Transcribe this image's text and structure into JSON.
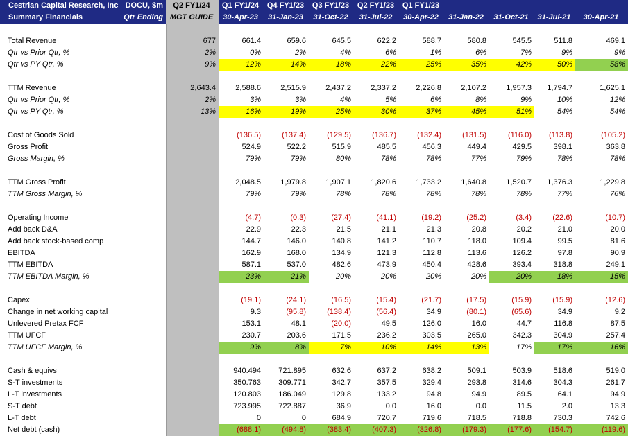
{
  "header": {
    "title": [
      "Cestrian Capital Research, Inc",
      "Summary Financials"
    ],
    "ticker": [
      "DOCU, $m",
      "Qtr Ending"
    ],
    "col_top": [
      "Q2 FY1/24",
      "Q1 FY1/24",
      "Q4 FY1/23",
      "Q3 FY1/23",
      "Q2 FY1/23",
      "Q1 FY1/23",
      "",
      "",
      "",
      ""
    ],
    "col_bottom": [
      "MGT GUIDE",
      "30-Apr-23",
      "31-Jan-23",
      "31-Oct-22",
      "31-Jul-22",
      "30-Apr-22",
      "31-Jan-22",
      "31-Oct-21",
      "31-Jul-21",
      "30-Apr-21"
    ]
  },
  "colors": {
    "header_bg": "#1f2a84",
    "guide_bg": "#bfbfbf",
    "highlight_yellow": "#ffff00",
    "highlight_green": "#92d050",
    "negative": "#c00000"
  },
  "rows": [
    {
      "type": "spacer"
    },
    {
      "label": "Total Revenue",
      "italic": false,
      "guide": "677",
      "values": [
        "661.4",
        "659.6",
        "645.5",
        "622.2",
        "588.7",
        "580.8",
        "545.5",
        "511.8",
        "469.1"
      ],
      "hl": [
        "",
        "",
        "",
        "",
        "",
        "",
        "",
        "",
        ""
      ]
    },
    {
      "label": "Qtr vs Prior Qtr, %",
      "italic": true,
      "guide": "2%",
      "values": [
        "0%",
        "2%",
        "4%",
        "6%",
        "1%",
        "6%",
        "7%",
        "9%",
        "9%"
      ],
      "hl": [
        "",
        "",
        "",
        "",
        "",
        "",
        "",
        "",
        ""
      ]
    },
    {
      "label": "Qtr vs PY Qtr, %",
      "italic": true,
      "guide": "9%",
      "values": [
        "12%",
        "14%",
        "18%",
        "22%",
        "25%",
        "35%",
        "42%",
        "50%",
        "58%"
      ],
      "hl": [
        "y",
        "y",
        "y",
        "y",
        "y",
        "y",
        "y",
        "y",
        "g"
      ]
    },
    {
      "type": "spacer"
    },
    {
      "label": "TTM Revenue",
      "italic": false,
      "guide": "2,643.4",
      "values": [
        "2,588.6",
        "2,515.9",
        "2,437.2",
        "2,337.2",
        "2,226.8",
        "2,107.2",
        "1,957.3",
        "1,794.7",
        "1,625.1"
      ],
      "hl": [
        "",
        "",
        "",
        "",
        "",
        "",
        "",
        "",
        ""
      ]
    },
    {
      "label": "Qtr vs Prior Qtr, %",
      "italic": true,
      "guide": "2%",
      "values": [
        "3%",
        "3%",
        "4%",
        "5%",
        "6%",
        "8%",
        "9%",
        "10%",
        "12%"
      ],
      "hl": [
        "",
        "",
        "",
        "",
        "",
        "",
        "",
        "",
        ""
      ]
    },
    {
      "label": "Qtr vs PY Qtr, %",
      "italic": true,
      "guide": "13%",
      "values": [
        "16%",
        "19%",
        "25%",
        "30%",
        "37%",
        "45%",
        "51%",
        "54%",
        "54%"
      ],
      "hl": [
        "y",
        "y",
        "y",
        "y",
        "y",
        "y",
        "y",
        "",
        ""
      ]
    },
    {
      "type": "spacer"
    },
    {
      "label": "Cost of Goods Sold",
      "italic": false,
      "guide": "",
      "values": [
        "(136.5)",
        "(137.4)",
        "(129.5)",
        "(136.7)",
        "(132.4)",
        "(131.5)",
        "(116.0)",
        "(113.8)",
        "(105.2)"
      ],
      "hl": [
        "",
        "",
        "",
        "",
        "",
        "",
        "",
        "",
        ""
      ]
    },
    {
      "label": "Gross Profit",
      "italic": false,
      "guide": "",
      "values": [
        "524.9",
        "522.2",
        "515.9",
        "485.5",
        "456.3",
        "449.4",
        "429.5",
        "398.1",
        "363.8"
      ],
      "hl": [
        "",
        "",
        "",
        "",
        "",
        "",
        "",
        "",
        ""
      ]
    },
    {
      "label": "Gross Margin, %",
      "italic": true,
      "guide": "",
      "values": [
        "79%",
        "79%",
        "80%",
        "78%",
        "78%",
        "77%",
        "79%",
        "78%",
        "78%"
      ],
      "hl": [
        "",
        "",
        "",
        "",
        "",
        "",
        "",
        "",
        ""
      ]
    },
    {
      "type": "spacer"
    },
    {
      "label": "TTM Gross Profit",
      "italic": false,
      "guide": "",
      "values": [
        "2,048.5",
        "1,979.8",
        "1,907.1",
        "1,820.6",
        "1,733.2",
        "1,640.8",
        "1,520.7",
        "1,376.3",
        "1,229.8"
      ],
      "hl": [
        "",
        "",
        "",
        "",
        "",
        "",
        "",
        "",
        ""
      ]
    },
    {
      "label": "TTM Gross Margin, %",
      "italic": true,
      "guide": "",
      "values": [
        "79%",
        "79%",
        "78%",
        "78%",
        "78%",
        "78%",
        "78%",
        "77%",
        "76%"
      ],
      "hl": [
        "",
        "",
        "",
        "",
        "",
        "",
        "",
        "",
        ""
      ]
    },
    {
      "type": "spacer"
    },
    {
      "label": "Operating Income",
      "italic": false,
      "guide": "",
      "values": [
        "(4.7)",
        "(0.3)",
        "(27.4)",
        "(41.1)",
        "(19.2)",
        "(25.2)",
        "(3.4)",
        "(22.6)",
        "(10.7)"
      ],
      "hl": [
        "",
        "",
        "",
        "",
        "",
        "",
        "",
        "",
        ""
      ]
    },
    {
      "label": "Add back D&A",
      "italic": false,
      "guide": "",
      "values": [
        "22.9",
        "22.3",
        "21.5",
        "21.1",
        "21.3",
        "20.8",
        "20.2",
        "21.0",
        "20.0"
      ],
      "hl": [
        "",
        "",
        "",
        "",
        "",
        "",
        "",
        "",
        ""
      ]
    },
    {
      "label": "Add back stock-based comp",
      "italic": false,
      "guide": "",
      "values": [
        "144.7",
        "146.0",
        "140.8",
        "141.2",
        "110.7",
        "118.0",
        "109.4",
        "99.5",
        "81.6"
      ],
      "hl": [
        "",
        "",
        "",
        "",
        "",
        "",
        "",
        "",
        ""
      ]
    },
    {
      "label": "EBITDA",
      "italic": false,
      "guide": "",
      "values": [
        "162.9",
        "168.0",
        "134.9",
        "121.3",
        "112.8",
        "113.6",
        "126.2",
        "97.8",
        "90.9"
      ],
      "hl": [
        "",
        "",
        "",
        "",
        "",
        "",
        "",
        "",
        ""
      ]
    },
    {
      "label": "TTM EBITDA",
      "italic": false,
      "guide": "",
      "values": [
        "587.1",
        "537.0",
        "482.6",
        "473.9",
        "450.4",
        "428.6",
        "393.4",
        "318.8",
        "249.1"
      ],
      "hl": [
        "",
        "",
        "",
        "",
        "",
        "",
        "",
        "",
        ""
      ]
    },
    {
      "label": "TTM EBITDA Margin, %",
      "italic": true,
      "guide": "",
      "values": [
        "23%",
        "21%",
        "20%",
        "20%",
        "20%",
        "20%",
        "20%",
        "18%",
        "15%"
      ],
      "hl": [
        "g",
        "g",
        "",
        "",
        "",
        "",
        "g",
        "g",
        "g"
      ]
    },
    {
      "type": "spacer"
    },
    {
      "label": "Capex",
      "italic": false,
      "guide": "",
      "values": [
        "(19.1)",
        "(24.1)",
        "(16.5)",
        "(15.4)",
        "(21.7)",
        "(17.5)",
        "(15.9)",
        "(15.9)",
        "(12.6)"
      ],
      "hl": [
        "",
        "",
        "",
        "",
        "",
        "",
        "",
        "",
        ""
      ]
    },
    {
      "label": "Change in net working capital",
      "italic": false,
      "guide": "",
      "values": [
        "9.3",
        "(95.8)",
        "(138.4)",
        "(56.4)",
        "34.9",
        "(80.1)",
        "(65.6)",
        "34.9",
        "9.2"
      ],
      "hl": [
        "",
        "",
        "",
        "",
        "",
        "",
        "",
        "",
        ""
      ]
    },
    {
      "label": "Unlevered Pretax FCF",
      "italic": false,
      "guide": "",
      "values": [
        "153.1",
        "48.1",
        "(20.0)",
        "49.5",
        "126.0",
        "16.0",
        "44.7",
        "116.8",
        "87.5"
      ],
      "hl": [
        "",
        "",
        "",
        "",
        "",
        "",
        "",
        "",
        ""
      ]
    },
    {
      "label": "TTM UFCF",
      "italic": false,
      "guide": "",
      "values": [
        "230.7",
        "203.6",
        "171.5",
        "236.2",
        "303.5",
        "265.0",
        "342.3",
        "304.9",
        "257.4"
      ],
      "hl": [
        "",
        "",
        "",
        "",
        "",
        "",
        "",
        "",
        ""
      ]
    },
    {
      "label": "TTM UFCF Margin, %",
      "italic": true,
      "guide": "",
      "values": [
        "9%",
        "8%",
        "7%",
        "10%",
        "14%",
        "13%",
        "17%",
        "17%",
        "16%"
      ],
      "hl": [
        "g",
        "g",
        "y",
        "y",
        "y",
        "y",
        "",
        "g",
        "g"
      ]
    },
    {
      "type": "spacer"
    },
    {
      "label": "Cash & equivs",
      "italic": false,
      "guide": "",
      "values": [
        "940.494",
        "721.895",
        "632.6",
        "637.2",
        "638.2",
        "509.1",
        "503.9",
        "518.6",
        "519.0"
      ],
      "hl": [
        "",
        "",
        "",
        "",
        "",
        "",
        "",
        "",
        ""
      ]
    },
    {
      "label": "S-T investments",
      "italic": false,
      "guide": "",
      "values": [
        "350.763",
        "309.771",
        "342.7",
        "357.5",
        "329.4",
        "293.8",
        "314.6",
        "304.3",
        "261.7"
      ],
      "hl": [
        "",
        "",
        "",
        "",
        "",
        "",
        "",
        "",
        ""
      ]
    },
    {
      "label": "L-T investments",
      "italic": false,
      "guide": "",
      "values": [
        "120.803",
        "186.049",
        "129.8",
        "133.2",
        "94.8",
        "94.9",
        "89.5",
        "64.1",
        "94.9"
      ],
      "hl": [
        "",
        "",
        "",
        "",
        "",
        "",
        "",
        "",
        ""
      ]
    },
    {
      "label": "S-T debt",
      "italic": false,
      "guide": "",
      "values": [
        "723.995",
        "722.887",
        "36.9",
        "0.0",
        "16.0",
        "0.0",
        "11.5",
        "2.0",
        "13.3"
      ],
      "hl": [
        "",
        "",
        "",
        "",
        "",
        "",
        "",
        "",
        ""
      ]
    },
    {
      "label": "L-T debt",
      "italic": false,
      "guide": "",
      "values": [
        "0",
        "0",
        "684.9",
        "720.7",
        "719.6",
        "718.5",
        "718.8",
        "730.3",
        "742.6"
      ],
      "hl": [
        "",
        "",
        "",
        "",
        "",
        "",
        "",
        "",
        ""
      ]
    },
    {
      "label": "Net debt (cash)",
      "italic": false,
      "guide": "",
      "values": [
        "(688.1)",
        "(494.8)",
        "(383.4)",
        "(407.3)",
        "(326.8)",
        "(179.3)",
        "(177.6)",
        "(154.7)",
        "(119.6)"
      ],
      "hl": [
        "g",
        "g",
        "g",
        "g",
        "g",
        "g",
        "g",
        "g",
        "g"
      ]
    }
  ]
}
